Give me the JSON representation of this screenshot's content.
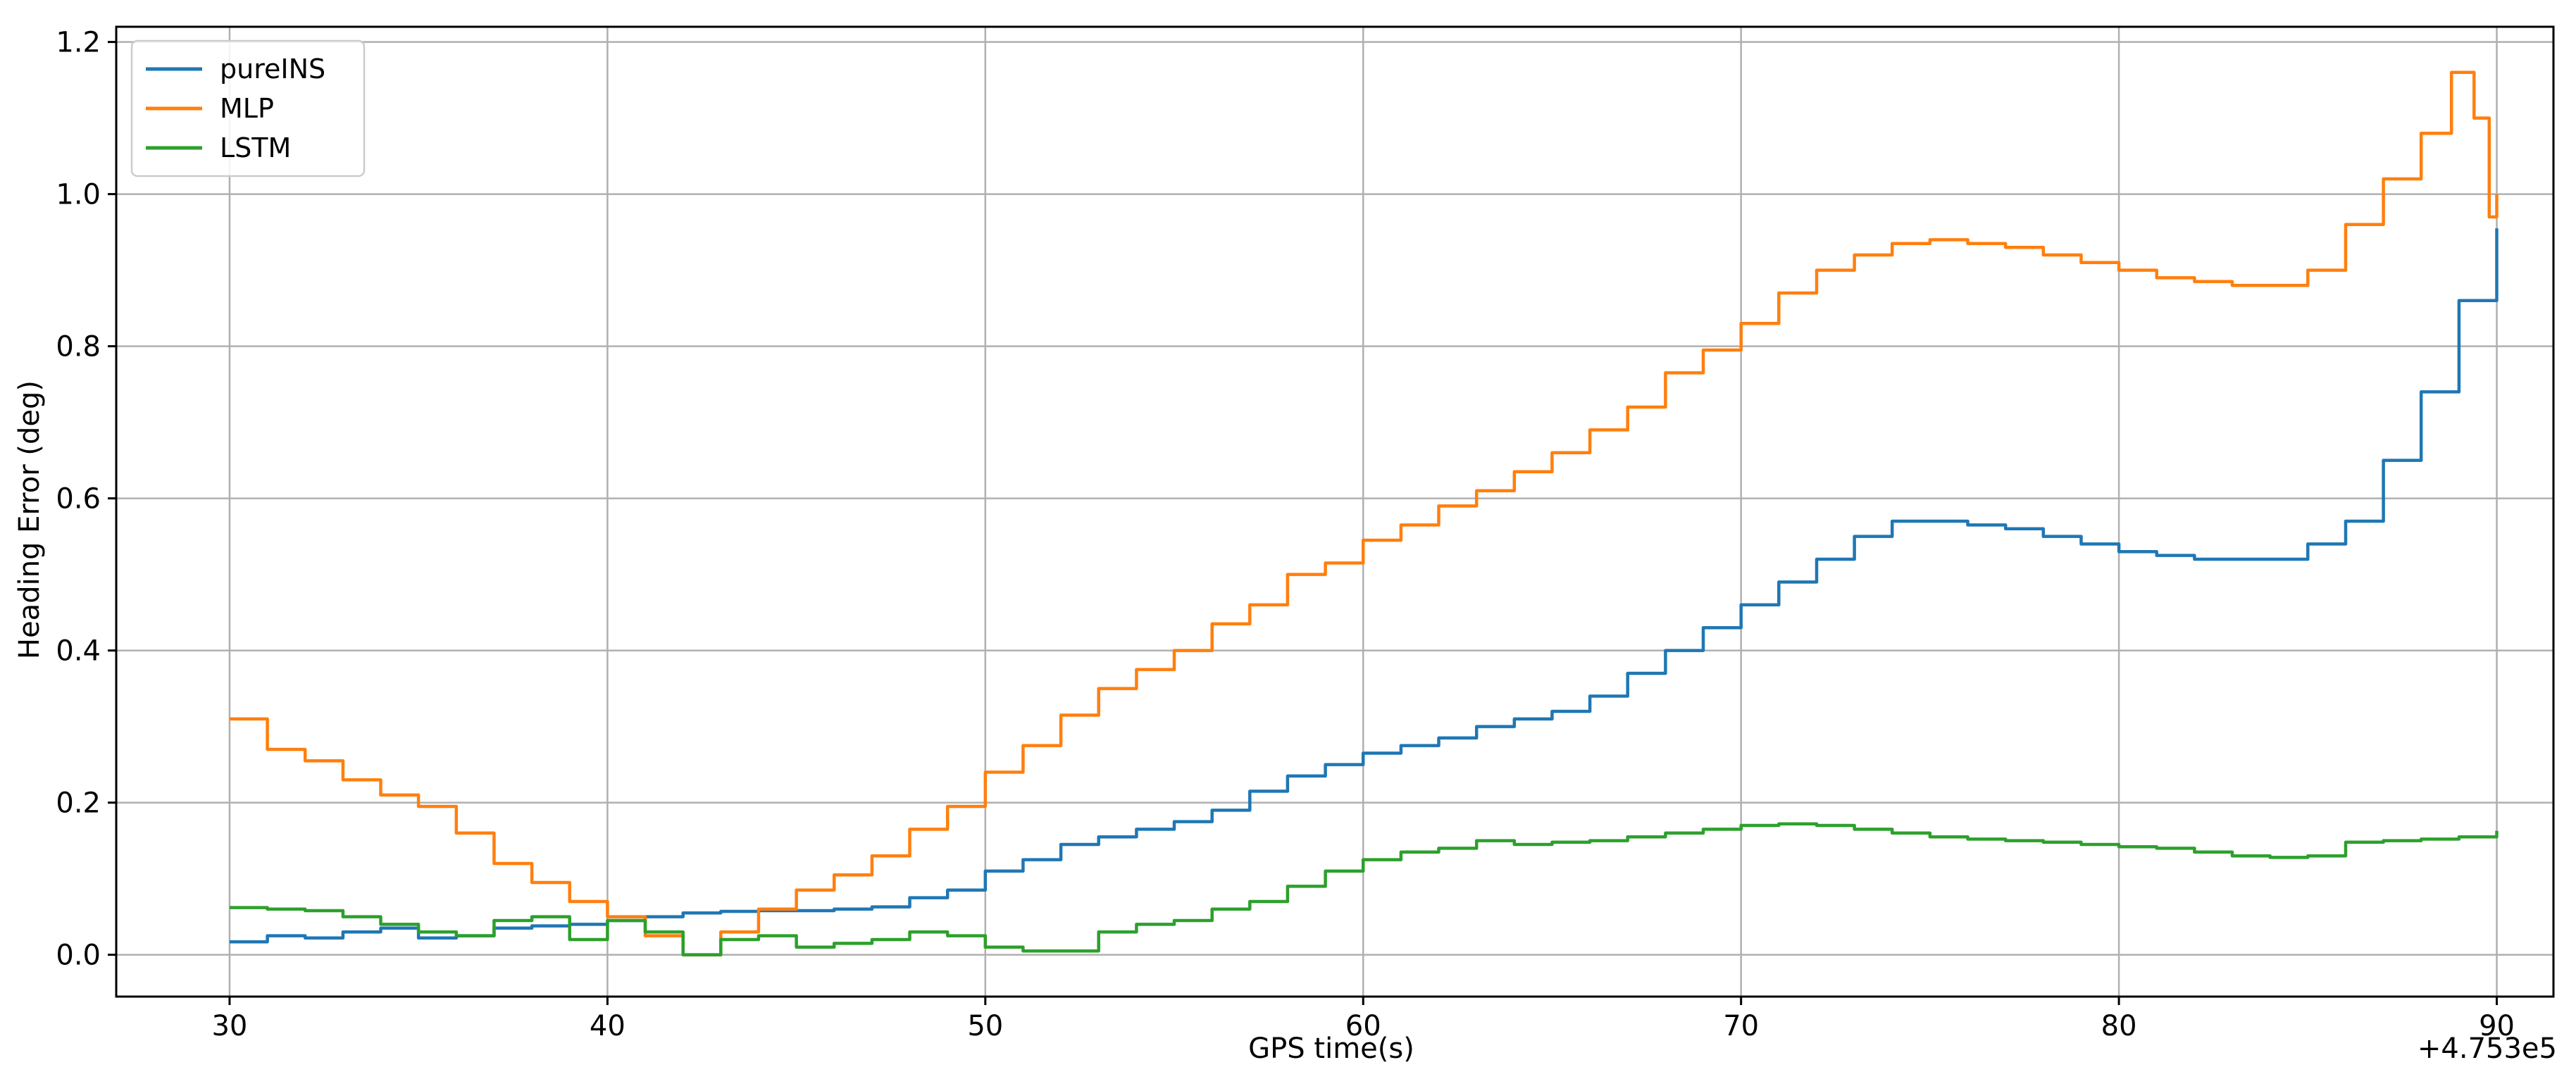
{
  "chart_data": {
    "type": "line",
    "title": "",
    "xlabel": "GPS time(s)",
    "ylabel": "Heading Error (deg)",
    "x_offset_label": "+4.753e5",
    "xlim": [
      27,
      91.5
    ],
    "ylim": [
      -0.055,
      1.22
    ],
    "x_ticks": [
      30,
      40,
      50,
      60,
      70,
      80,
      90
    ],
    "y_ticks": [
      0.0,
      0.2,
      0.4,
      0.6,
      0.8,
      1.0,
      1.2
    ],
    "x_tick_labels": [
      "30",
      "40",
      "50",
      "60",
      "70",
      "80",
      "90"
    ],
    "y_tick_labels": [
      "0.0",
      "0.2",
      "0.4",
      "0.6",
      "0.8",
      "1.0",
      "1.2"
    ],
    "grid": true,
    "legend_position": "top-left",
    "series": [
      {
        "name": "pureINS",
        "color": "#1f77b4",
        "points": [
          [
            30,
            0.017
          ],
          [
            31,
            0.025
          ],
          [
            32,
            0.022
          ],
          [
            33,
            0.03
          ],
          [
            34,
            0.035
          ],
          [
            35,
            0.022
          ],
          [
            36,
            0.025
          ],
          [
            37,
            0.035
          ],
          [
            38,
            0.038
          ],
          [
            39,
            0.04
          ],
          [
            40,
            0.045
          ],
          [
            41,
            0.05
          ],
          [
            42,
            0.055
          ],
          [
            43,
            0.057
          ],
          [
            44,
            0.058
          ],
          [
            45,
            0.058
          ],
          [
            46,
            0.06
          ],
          [
            47,
            0.063
          ],
          [
            48,
            0.075
          ],
          [
            49,
            0.085
          ],
          [
            50,
            0.11
          ],
          [
            51,
            0.125
          ],
          [
            52,
            0.145
          ],
          [
            53,
            0.155
          ],
          [
            54,
            0.165
          ],
          [
            55,
            0.175
          ],
          [
            56,
            0.19
          ],
          [
            57,
            0.215
          ],
          [
            58,
            0.235
          ],
          [
            59,
            0.25
          ],
          [
            60,
            0.265
          ],
          [
            61,
            0.275
          ],
          [
            62,
            0.285
          ],
          [
            63,
            0.3
          ],
          [
            64,
            0.31
          ],
          [
            65,
            0.32
          ],
          [
            66,
            0.34
          ],
          [
            67,
            0.37
          ],
          [
            68,
            0.4
          ],
          [
            69,
            0.43
          ],
          [
            70,
            0.46
          ],
          [
            71,
            0.49
          ],
          [
            72,
            0.52
          ],
          [
            73,
            0.55
          ],
          [
            74,
            0.57
          ],
          [
            75,
            0.57
          ],
          [
            76,
            0.565
          ],
          [
            77,
            0.56
          ],
          [
            78,
            0.55
          ],
          [
            79,
            0.54
          ],
          [
            80,
            0.53
          ],
          [
            81,
            0.525
          ],
          [
            82,
            0.52
          ],
          [
            83,
            0.52
          ],
          [
            84,
            0.52
          ],
          [
            85,
            0.54
          ],
          [
            86,
            0.57
          ],
          [
            87,
            0.65
          ],
          [
            88,
            0.74
          ],
          [
            89,
            0.86
          ],
          [
            90,
            0.955
          ]
        ]
      },
      {
        "name": "MLP",
        "color": "#ff7f0e",
        "points": [
          [
            30,
            0.31
          ],
          [
            31,
            0.27
          ],
          [
            32,
            0.255
          ],
          [
            33,
            0.23
          ],
          [
            34,
            0.21
          ],
          [
            35,
            0.195
          ],
          [
            36,
            0.16
          ],
          [
            37,
            0.12
          ],
          [
            38,
            0.095
          ],
          [
            39,
            0.07
          ],
          [
            40,
            0.05
          ],
          [
            41,
            0.025
          ],
          [
            42,
            0.0
          ],
          [
            43,
            0.03
          ],
          [
            44,
            0.06
          ],
          [
            45,
            0.085
          ],
          [
            46,
            0.105
          ],
          [
            47,
            0.13
          ],
          [
            48,
            0.165
          ],
          [
            49,
            0.195
          ],
          [
            50,
            0.24
          ],
          [
            51,
            0.275
          ],
          [
            52,
            0.315
          ],
          [
            53,
            0.35
          ],
          [
            54,
            0.375
          ],
          [
            55,
            0.4
          ],
          [
            56,
            0.435
          ],
          [
            57,
            0.46
          ],
          [
            58,
            0.5
          ],
          [
            59,
            0.515
          ],
          [
            60,
            0.545
          ],
          [
            61,
            0.565
          ],
          [
            62,
            0.59
          ],
          [
            63,
            0.61
          ],
          [
            64,
            0.635
          ],
          [
            65,
            0.66
          ],
          [
            66,
            0.69
          ],
          [
            67,
            0.72
          ],
          [
            68,
            0.765
          ],
          [
            69,
            0.795
          ],
          [
            70,
            0.83
          ],
          [
            71,
            0.87
          ],
          [
            72,
            0.9
          ],
          [
            73,
            0.92
          ],
          [
            74,
            0.935
          ],
          [
            75,
            0.94
          ],
          [
            76,
            0.935
          ],
          [
            77,
            0.93
          ],
          [
            78,
            0.92
          ],
          [
            79,
            0.91
          ],
          [
            80,
            0.9
          ],
          [
            81,
            0.89
          ],
          [
            82,
            0.885
          ],
          [
            83,
            0.88
          ],
          [
            84,
            0.88
          ],
          [
            85,
            0.9
          ],
          [
            86,
            0.96
          ],
          [
            87,
            1.02
          ],
          [
            88,
            1.08
          ],
          [
            88.8,
            1.16
          ],
          [
            89.4,
            1.1
          ],
          [
            89.8,
            0.97
          ],
          [
            90,
            1.0
          ]
        ]
      },
      {
        "name": "LSTM",
        "color": "#2ca02c",
        "points": [
          [
            30,
            0.062
          ],
          [
            31,
            0.06
          ],
          [
            32,
            0.058
          ],
          [
            33,
            0.05
          ],
          [
            34,
            0.04
          ],
          [
            35,
            0.03
          ],
          [
            36,
            0.025
          ],
          [
            37,
            0.045
          ],
          [
            38,
            0.05
          ],
          [
            39,
            0.02
          ],
          [
            40,
            0.045
          ],
          [
            41,
            0.03
          ],
          [
            42,
            0.0
          ],
          [
            43,
            0.02
          ],
          [
            44,
            0.025
          ],
          [
            45,
            0.01
          ],
          [
            46,
            0.015
          ],
          [
            47,
            0.02
          ],
          [
            48,
            0.03
          ],
          [
            49,
            0.025
          ],
          [
            50,
            0.01
          ],
          [
            51,
            0.005
          ],
          [
            52,
            0.005
          ],
          [
            53,
            0.03
          ],
          [
            54,
            0.04
          ],
          [
            55,
            0.045
          ],
          [
            56,
            0.06
          ],
          [
            57,
            0.07
          ],
          [
            58,
            0.09
          ],
          [
            59,
            0.11
          ],
          [
            60,
            0.125
          ],
          [
            61,
            0.135
          ],
          [
            62,
            0.14
          ],
          [
            63,
            0.15
          ],
          [
            64,
            0.145
          ],
          [
            65,
            0.148
          ],
          [
            66,
            0.15
          ],
          [
            67,
            0.155
          ],
          [
            68,
            0.16
          ],
          [
            69,
            0.165
          ],
          [
            70,
            0.17
          ],
          [
            71,
            0.172
          ],
          [
            72,
            0.17
          ],
          [
            73,
            0.165
          ],
          [
            74,
            0.16
          ],
          [
            75,
            0.155
          ],
          [
            76,
            0.152
          ],
          [
            77,
            0.15
          ],
          [
            78,
            0.148
          ],
          [
            79,
            0.145
          ],
          [
            80,
            0.142
          ],
          [
            81,
            0.14
          ],
          [
            82,
            0.135
          ],
          [
            83,
            0.13
          ],
          [
            84,
            0.128
          ],
          [
            85,
            0.13
          ],
          [
            86,
            0.148
          ],
          [
            87,
            0.15
          ],
          [
            88,
            0.152
          ],
          [
            89,
            0.155
          ],
          [
            90,
            0.163
          ]
        ]
      }
    ]
  }
}
